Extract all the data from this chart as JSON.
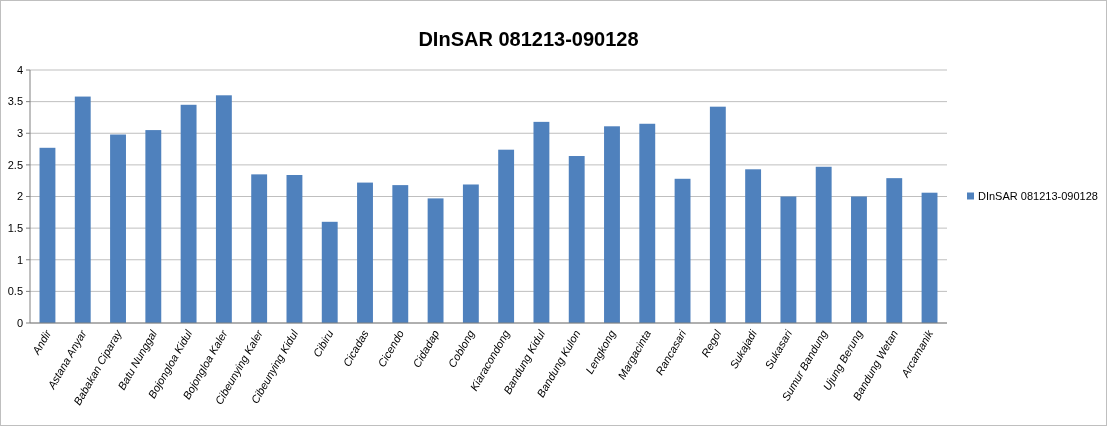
{
  "chart_data": {
    "type": "bar",
    "title": "DInSAR 081213-090128",
    "categories": [
      "Andir",
      "Astana Anyar",
      "Babakan Ciparay",
      "Batu Nunggal",
      "Bojongloa Kidul",
      "Bojongloa Kaler",
      "Cibeunying Kaler",
      "Cibeunying Kidul",
      "Cibiru",
      "Cicadas",
      "Cicendo",
      "Cidadap",
      "Coblong",
      "Kiaracondong",
      "Bandung Kidul",
      "Bandung Kulon",
      "Lengkong",
      "Margacinta",
      "Rancasari",
      "Regol",
      "Sukajadi",
      "Sukasari",
      "Sumur Bandung",
      "Ujung Berung",
      "Bandung Wetan",
      "Arcamanik"
    ],
    "series": [
      {
        "name": "DInSAR 081213-090128",
        "color": "#4f81bd",
        "values": [
          2.77,
          3.58,
          2.98,
          3.05,
          3.45,
          3.6,
          2.35,
          2.34,
          1.6,
          2.22,
          2.18,
          1.97,
          2.19,
          2.74,
          3.18,
          2.64,
          3.11,
          3.15,
          2.28,
          3.42,
          2.43,
          2.0,
          2.47,
          2.0,
          2.29,
          2.06
        ]
      }
    ],
    "ylim": [
      0,
      4
    ],
    "yticks": [
      0,
      0.5,
      1,
      1.5,
      2,
      2.5,
      3,
      3.5,
      4
    ],
    "grid": "y",
    "legend": "right"
  }
}
